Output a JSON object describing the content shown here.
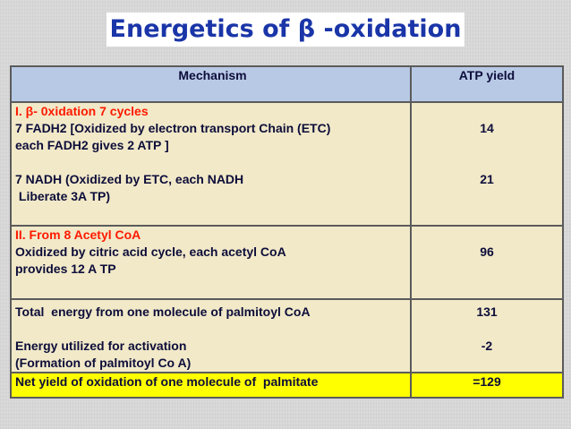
{
  "title": "Energetics of β -oxidation",
  "table": {
    "headers": {
      "mechanism": "Mechanism",
      "atp_yield": "ATP yield"
    },
    "row1": {
      "heading": "I. β- 0xidation 7 cycles",
      "line1": "7 FADH2 [Oxidized by electron transport Chain (ETC)",
      "line2": "each FADH2 gives 2 ATP ]",
      "line3": "7 NADH (Oxidized by ETC, each NADH",
      "line4": " Liberate 3A TP)",
      "value1": "14",
      "value2": "21"
    },
    "row2": {
      "heading": "II. From 8 Acetyl CoA",
      "line1": "Oxidized by citric acid cycle, each acetyl CoA",
      "line2": "provides 12 A TP",
      "value": "96"
    },
    "row3": {
      "line1": "Total  energy from one molecule of palmitoyl CoA",
      "line2": "Energy utilized for activation",
      "line3": "(Formation of palmitoyl Co A)",
      "value1": "131",
      "value2": "-2"
    },
    "row4": {
      "label": "Net yield of oxidation of one molecule of  palmitate",
      "value": "=129"
    }
  }
}
